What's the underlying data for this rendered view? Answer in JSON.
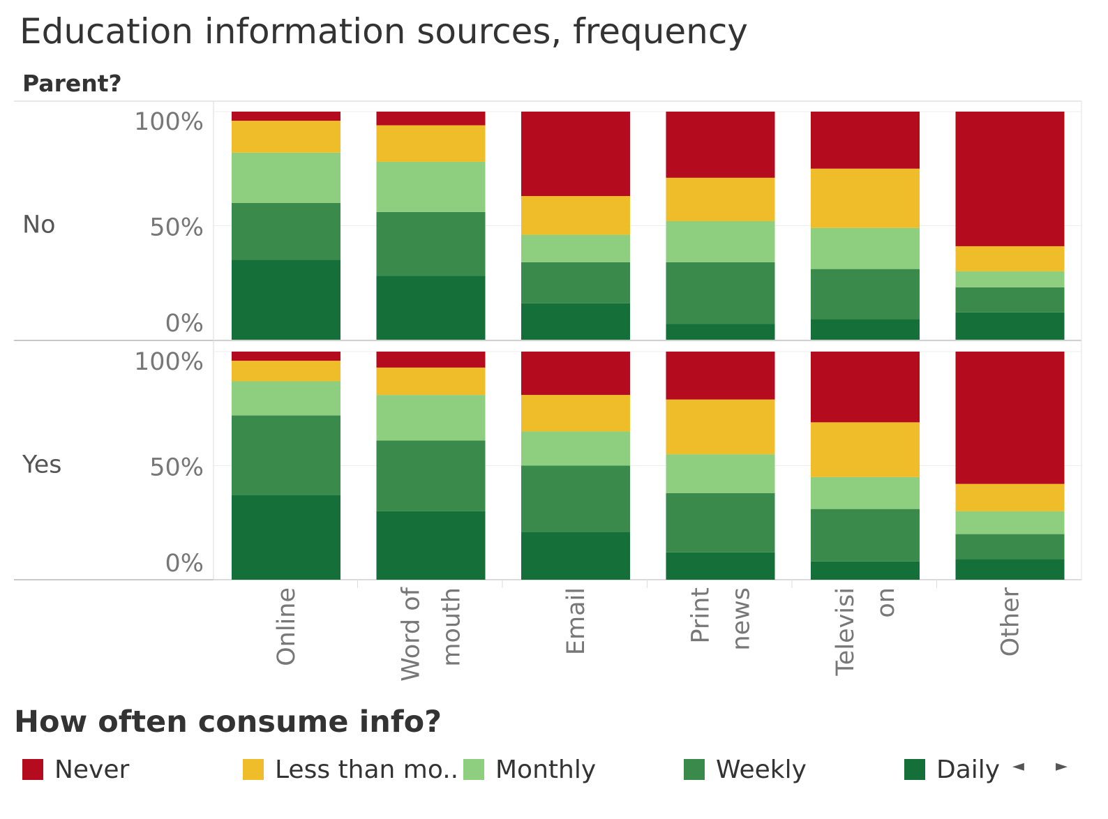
{
  "title": "Education information sources, frequency",
  "row_header": "Parent?",
  "legend": {
    "title": "How often consume info?",
    "items": [
      {
        "label": "Never",
        "color": "#b50b1e"
      },
      {
        "label": "Less than mo..",
        "color": "#efbd29"
      },
      {
        "label": "Monthly",
        "color": "#8dcf7f"
      },
      {
        "label": "Weekly",
        "color": "#3a8a4c"
      },
      {
        "label": "Daily",
        "color": "#156f38"
      }
    ],
    "prev_arrow": "◄",
    "next_arrow": "►"
  },
  "chart_data": {
    "type": "bar",
    "stacked": true,
    "normalized": true,
    "categories": [
      [
        "Online"
      ],
      [
        "Word of",
        "mouth"
      ],
      [
        "Email"
      ],
      [
        "Print",
        "news"
      ],
      [
        "Televisi",
        "on"
      ],
      [
        "Other"
      ]
    ],
    "row_field": "Parent?",
    "rows": [
      "No",
      "Yes"
    ],
    "y_ticks": [
      "100%",
      "50%",
      "0%"
    ],
    "ylim": [
      0,
      100
    ],
    "stack_order_bottom_to_top": [
      "Daily",
      "Weekly",
      "Monthly",
      "Less than mo..",
      "Never"
    ],
    "panels": [
      {
        "row": "No",
        "series": [
          {
            "name": "Daily",
            "values": [
              35,
              28,
              16,
              7,
              9,
              12
            ]
          },
          {
            "name": "Weekly",
            "values": [
              25,
              28,
              18,
              27,
              22,
              11
            ]
          },
          {
            "name": "Monthly",
            "values": [
              22,
              22,
              12,
              18,
              18,
              7
            ]
          },
          {
            "name": "Less than mo..",
            "values": [
              14,
              16,
              17,
              19,
              26,
              11
            ]
          },
          {
            "name": "Never",
            "values": [
              4,
              6,
              37,
              29,
              25,
              59
            ]
          }
        ]
      },
      {
        "row": "Yes",
        "series": [
          {
            "name": "Daily",
            "values": [
              37,
              30,
              21,
              12,
              8,
              9
            ]
          },
          {
            "name": "Weekly",
            "values": [
              35,
              31,
              29,
              26,
              23,
              11
            ]
          },
          {
            "name": "Monthly",
            "values": [
              15,
              20,
              15,
              17,
              14,
              10
            ]
          },
          {
            "name": "Less than mo..",
            "values": [
              9,
              12,
              16,
              24,
              24,
              12
            ]
          },
          {
            "name": "Never",
            "values": [
              4,
              7,
              19,
              21,
              31,
              58
            ]
          }
        ]
      }
    ],
    "grid": true,
    "legend_position": "bottom"
  }
}
